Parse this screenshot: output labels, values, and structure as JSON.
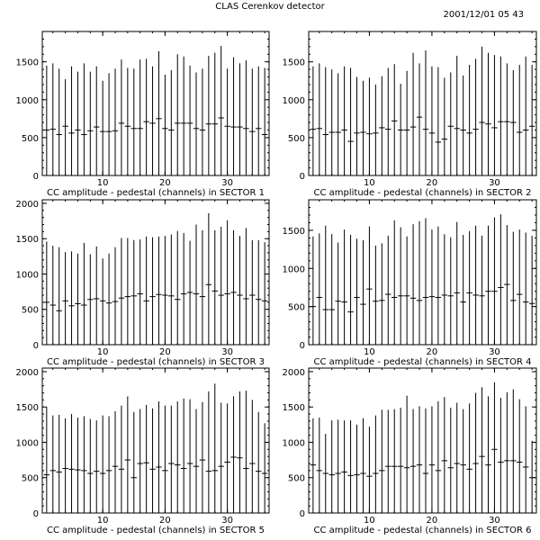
{
  "header": {
    "title": "CLAS Cerenkov detector",
    "timestamp": "2001/12/01   05 43"
  },
  "chart_data": [
    {
      "type": "bar",
      "xlabel": "CC amplitude - pedestal (channels) in SECTOR 1",
      "ylabel": "",
      "xlim": [
        1,
        36
      ],
      "ylim": [
        0,
        1900
      ],
      "yticks": [
        0,
        500,
        1000,
        1500
      ],
      "xticks": [
        10,
        20,
        30
      ],
      "x": [
        1,
        2,
        3,
        4,
        5,
        6,
        7,
        8,
        9,
        10,
        11,
        12,
        13,
        14,
        15,
        16,
        17,
        18,
        19,
        20,
        21,
        22,
        23,
        24,
        25,
        26,
        27,
        28,
        29,
        30,
        31,
        32,
        33,
        34,
        35,
        36
      ],
      "series": [
        {
          "values": [
            600,
            610,
            540,
            650,
            560,
            600,
            540,
            590,
            640,
            580,
            580,
            590,
            690,
            650,
            620,
            620,
            710,
            690,
            750,
            620,
            600,
            690,
            690,
            690,
            620,
            600,
            680,
            680,
            760,
            650,
            640,
            640,
            620,
            580,
            620,
            540
          ],
          "error_high": [
            1450,
            1480,
            1410,
            1270,
            1440,
            1370,
            1480,
            1370,
            1440,
            1250,
            1350,
            1410,
            1530,
            1420,
            1410,
            1530,
            1540,
            1440,
            1640,
            1330,
            1390,
            1600,
            1570,
            1450,
            1360,
            1410,
            1580,
            1620,
            1710,
            1410,
            1560,
            1480,
            1520,
            1410,
            1440,
            1420
          ]
        }
      ]
    },
    {
      "type": "bar",
      "xlabel": "CC amplitude - pedestal (channels) in SECTOR 2",
      "ylabel": "",
      "xlim": [
        1,
        36
      ],
      "ylim": [
        0,
        1900
      ],
      "yticks": [
        0,
        500,
        1000,
        1500
      ],
      "xticks": [
        10,
        20,
        30
      ],
      "x": [
        1,
        2,
        3,
        4,
        5,
        6,
        7,
        8,
        9,
        10,
        11,
        12,
        13,
        14,
        15,
        16,
        17,
        18,
        19,
        20,
        21,
        22,
        23,
        24,
        25,
        26,
        27,
        28,
        29,
        30,
        31,
        32,
        33,
        34,
        35,
        36
      ],
      "series": [
        {
          "values": [
            610,
            620,
            540,
            570,
            570,
            600,
            450,
            560,
            570,
            550,
            560,
            630,
            610,
            720,
            600,
            600,
            640,
            770,
            610,
            560,
            440,
            480,
            650,
            620,
            600,
            560,
            610,
            700,
            680,
            630,
            710,
            710,
            700,
            570,
            600,
            650
          ],
          "error_high": [
            1440,
            1480,
            1430,
            1400,
            1350,
            1440,
            1420,
            1300,
            1250,
            1290,
            1200,
            1310,
            1420,
            1470,
            1210,
            1380,
            1620,
            1480,
            1650,
            1440,
            1430,
            1290,
            1360,
            1580,
            1320,
            1460,
            1540,
            1700,
            1620,
            1590,
            1570,
            1480,
            1390,
            1460,
            1570,
            1460
          ]
        }
      ]
    },
    {
      "type": "bar",
      "xlabel": "CC amplitude - pedestal (channels) in SECTOR 3",
      "ylabel": "",
      "xlim": [
        1,
        36
      ],
      "ylim": [
        0,
        2050
      ],
      "yticks": [
        0,
        500,
        1000,
        1500,
        2000
      ],
      "xticks": [
        10,
        20,
        30
      ],
      "x": [
        1,
        2,
        3,
        4,
        5,
        6,
        7,
        8,
        9,
        10,
        11,
        12,
        13,
        14,
        15,
        16,
        17,
        18,
        19,
        20,
        21,
        22,
        23,
        24,
        25,
        26,
        27,
        28,
        29,
        30,
        31,
        32,
        33,
        34,
        35,
        36
      ],
      "series": [
        {
          "values": [
            600,
            560,
            480,
            620,
            550,
            580,
            560,
            640,
            650,
            620,
            590,
            610,
            660,
            680,
            690,
            720,
            620,
            680,
            710,
            700,
            690,
            640,
            720,
            740,
            720,
            680,
            850,
            760,
            700,
            720,
            740,
            700,
            650,
            700,
            640,
            620
          ],
          "error_high": [
            1460,
            1400,
            1380,
            1310,
            1320,
            1290,
            1440,
            1280,
            1390,
            1220,
            1290,
            1380,
            1510,
            1510,
            1480,
            1490,
            1530,
            1520,
            1530,
            1540,
            1560,
            1610,
            1580,
            1470,
            1700,
            1620,
            1860,
            1620,
            1670,
            1760,
            1620,
            1540,
            1650,
            1480,
            1480,
            1450
          ]
        }
      ]
    },
    {
      "type": "bar",
      "xlabel": "CC amplitude - pedestal (channels) in SECTOR 4",
      "ylabel": "",
      "xlim": [
        1,
        36
      ],
      "ylim": [
        0,
        1900
      ],
      "yticks": [
        0,
        500,
        1000,
        1500
      ],
      "xticks": [
        10,
        20,
        30
      ],
      "x": [
        1,
        2,
        3,
        4,
        5,
        6,
        7,
        8,
        9,
        10,
        11,
        12,
        13,
        14,
        15,
        16,
        17,
        18,
        19,
        20,
        21,
        22,
        23,
        24,
        25,
        26,
        27,
        28,
        29,
        30,
        31,
        32,
        33,
        34,
        35,
        36
      ],
      "series": [
        {
          "values": [
            500,
            620,
            460,
            460,
            570,
            560,
            430,
            620,
            530,
            730,
            570,
            580,
            660,
            620,
            640,
            640,
            610,
            580,
            620,
            630,
            620,
            650,
            640,
            680,
            560,
            680,
            650,
            640,
            700,
            700,
            750,
            790,
            580,
            660,
            560,
            540
          ],
          "error_high": [
            1420,
            1460,
            1560,
            1450,
            1340,
            1510,
            1440,
            1390,
            1370,
            1550,
            1300,
            1330,
            1430,
            1630,
            1540,
            1420,
            1580,
            1620,
            1660,
            1510,
            1550,
            1450,
            1410,
            1610,
            1440,
            1490,
            1560,
            1430,
            1560,
            1670,
            1710,
            1570,
            1480,
            1510,
            1470,
            1430
          ]
        }
      ]
    },
    {
      "type": "bar",
      "xlabel": "CC amplitude - pedestal (channels) in SECTOR 5",
      "ylabel": "",
      "xlim": [
        1,
        36
      ],
      "ylim": [
        0,
        2050
      ],
      "yticks": [
        0,
        500,
        1000,
        1500,
        2000
      ],
      "xticks": [
        10,
        20,
        30
      ],
      "x": [
        1,
        2,
        3,
        4,
        5,
        6,
        7,
        8,
        9,
        10,
        11,
        12,
        13,
        14,
        15,
        16,
        17,
        18,
        19,
        20,
        21,
        22,
        23,
        24,
        25,
        26,
        27,
        28,
        29,
        30,
        31,
        32,
        33,
        34,
        35,
        36
      ],
      "series": [
        {
          "values": [
            540,
            600,
            580,
            630,
            620,
            610,
            600,
            560,
            590,
            560,
            600,
            660,
            620,
            750,
            500,
            700,
            710,
            620,
            650,
            600,
            700,
            680,
            630,
            700,
            660,
            750,
            590,
            600,
            660,
            720,
            790,
            780,
            630,
            700,
            590,
            560
          ],
          "error_high": [
            1500,
            1380,
            1390,
            1340,
            1400,
            1350,
            1370,
            1330,
            1310,
            1380,
            1370,
            1440,
            1520,
            1650,
            1430,
            1470,
            1530,
            1480,
            1580,
            1520,
            1520,
            1580,
            1620,
            1610,
            1470,
            1570,
            1720,
            1830,
            1560,
            1550,
            1650,
            1720,
            1730,
            1600,
            1430,
            1270
          ]
        }
      ]
    },
    {
      "type": "bar",
      "xlabel": "CC amplitude - pedestal (channels) in SECTOR 6",
      "ylabel": "",
      "xlim": [
        1,
        36
      ],
      "ylim": [
        0,
        2050
      ],
      "yticks": [
        0,
        500,
        1000,
        1500,
        2000
      ],
      "xticks": [
        10,
        20,
        30
      ],
      "x": [
        1,
        2,
        3,
        4,
        5,
        6,
        7,
        8,
        9,
        10,
        11,
        12,
        13,
        14,
        15,
        16,
        17,
        18,
        19,
        20,
        21,
        22,
        23,
        24,
        25,
        26,
        27,
        28,
        29,
        30,
        31,
        32,
        33,
        34,
        35,
        36
      ],
      "series": [
        {
          "values": [
            680,
            600,
            560,
            540,
            560,
            580,
            530,
            540,
            560,
            520,
            560,
            600,
            660,
            660,
            660,
            640,
            660,
            680,
            560,
            680,
            600,
            740,
            640,
            700,
            680,
            620,
            700,
            800,
            680,
            900,
            720,
            740,
            740,
            720,
            650,
            500
          ],
          "error_high": [
            1340,
            1350,
            1120,
            1310,
            1320,
            1310,
            1310,
            1250,
            1340,
            1220,
            1380,
            1460,
            1460,
            1470,
            1490,
            1660,
            1470,
            1510,
            1480,
            1510,
            1580,
            1640,
            1490,
            1560,
            1470,
            1550,
            1700,
            1780,
            1650,
            1850,
            1630,
            1710,
            1750,
            1610,
            1510,
            1020
          ]
        }
      ]
    }
  ]
}
